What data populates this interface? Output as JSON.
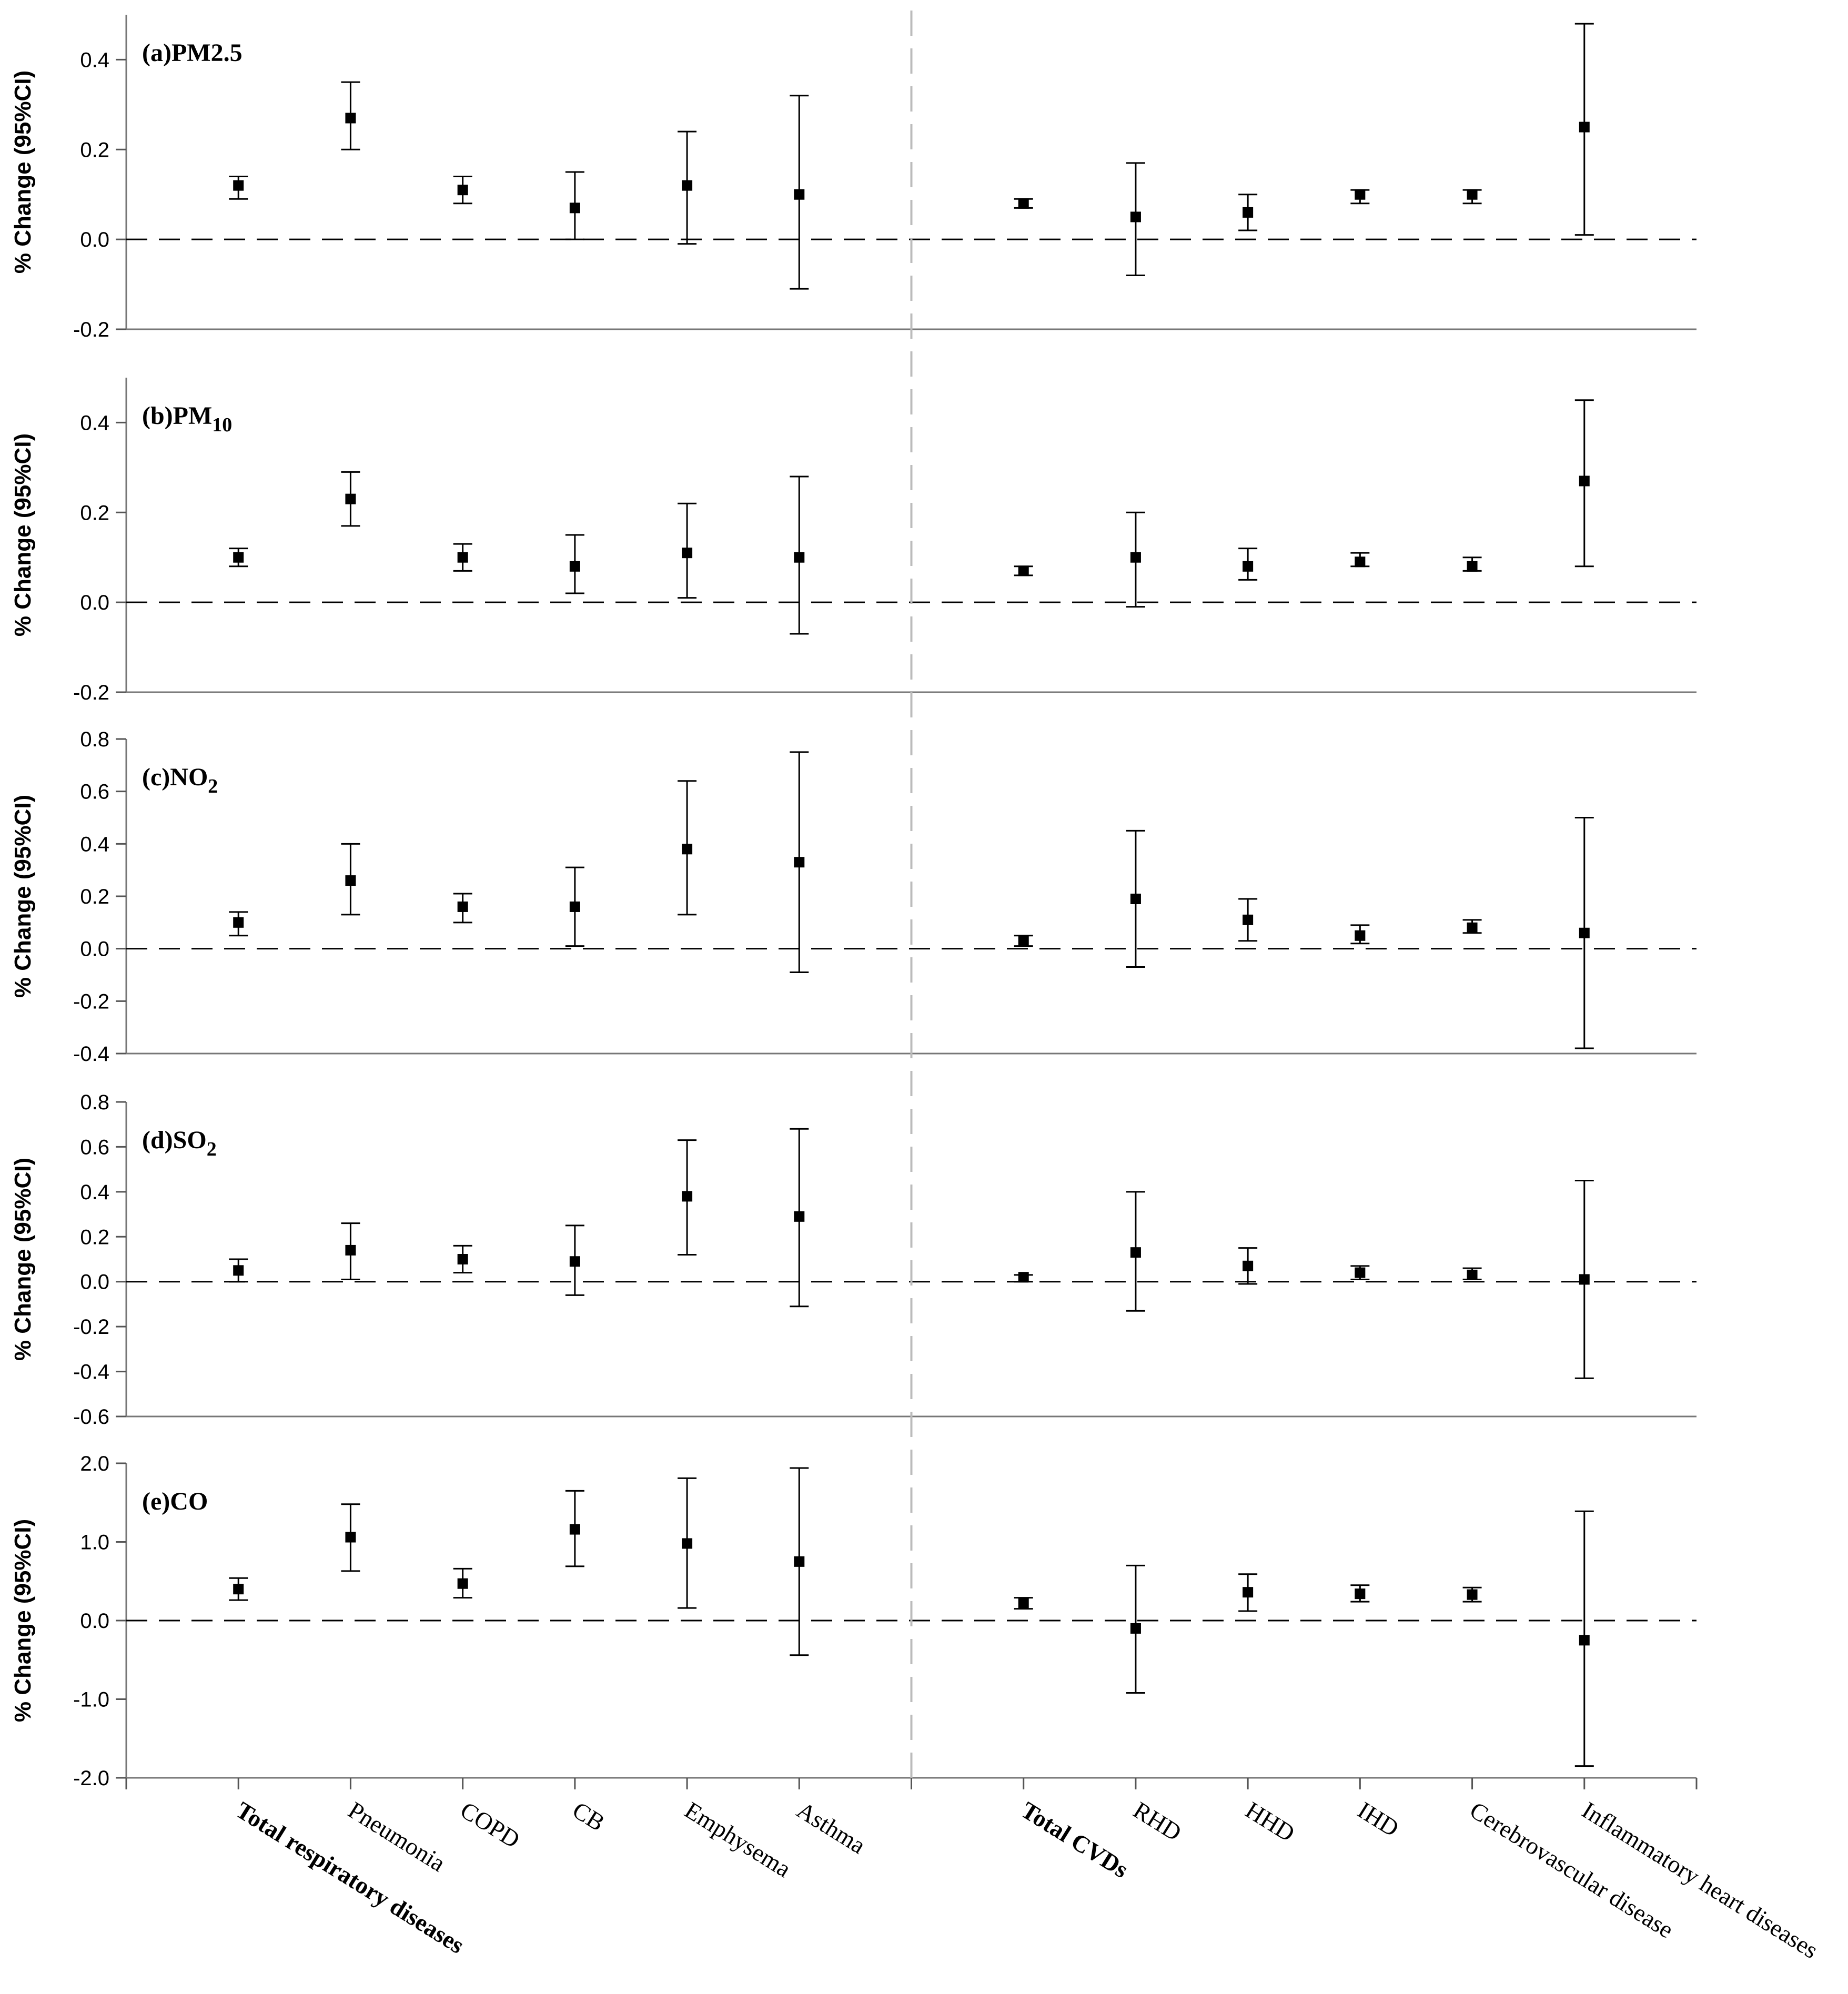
{
  "chart_data": {
    "type": "scatter",
    "subtype": "point-with-error-bars",
    "categories": [
      {
        "label": "Total respiratory diseases",
        "bold": true
      },
      {
        "label": "Pneumonia",
        "bold": false
      },
      {
        "label": "COPD",
        "bold": false
      },
      {
        "label": "CB",
        "bold": false
      },
      {
        "label": "Emphysema",
        "bold": false
      },
      {
        "label": "Asthma",
        "bold": false
      },
      {
        "label": "Total CVDs",
        "bold": true
      },
      {
        "label": "RHD",
        "bold": false
      },
      {
        "label": "HHD",
        "bold": false
      },
      {
        "label": "IHD",
        "bold": false
      },
      {
        "label": "Cerebrovascular disease",
        "bold": false
      },
      {
        "label": "Inflammatory heart diseases",
        "bold": false
      }
    ],
    "ylabel": "% Change (95%CI)",
    "reference_line": 0,
    "group_divider_after_index": 5,
    "panels": [
      {
        "title": {
          "main": "(a)PM",
          "sub": "",
          "tail": "2.5"
        },
        "ylim": [
          -0.2,
          0.5
        ],
        "yticks": [
          -0.2,
          0.0,
          0.2,
          0.4
        ],
        "tick_format": 1,
        "estimate": [
          0.12,
          0.27,
          0.11,
          0.07,
          0.12,
          0.1,
          0.08,
          0.05,
          0.06,
          0.1,
          0.1,
          0.25
        ],
        "lower": [
          0.09,
          0.2,
          0.08,
          0.0,
          -0.01,
          -0.11,
          0.07,
          -0.08,
          0.02,
          0.08,
          0.08,
          0.01
        ],
        "upper": [
          0.14,
          0.35,
          0.14,
          0.15,
          0.24,
          0.32,
          0.09,
          0.17,
          0.1,
          0.11,
          0.11,
          0.48
        ]
      },
      {
        "title": {
          "main": "(b)PM",
          "sub": "10",
          "tail": ""
        },
        "ylim": [
          -0.2,
          0.5
        ],
        "yticks": [
          -0.2,
          0.0,
          0.2,
          0.4
        ],
        "tick_format": 1,
        "estimate": [
          0.1,
          0.23,
          0.1,
          0.08,
          0.11,
          0.1,
          0.07,
          0.1,
          0.08,
          0.09,
          0.08,
          0.27
        ],
        "lower": [
          0.08,
          0.17,
          0.07,
          0.02,
          0.01,
          -0.07,
          0.06,
          -0.01,
          0.05,
          0.08,
          0.07,
          0.08
        ],
        "upper": [
          0.12,
          0.29,
          0.13,
          0.15,
          0.22,
          0.28,
          0.08,
          0.2,
          0.12,
          0.11,
          0.1,
          0.45
        ]
      },
      {
        "title": {
          "main": "(c)NO",
          "sub": "2",
          "tail": ""
        },
        "ylim": [
          -0.4,
          0.8
        ],
        "yticks": [
          -0.4,
          -0.2,
          0.0,
          0.2,
          0.4,
          0.6,
          0.8
        ],
        "tick_format": 1,
        "estimate": [
          0.1,
          0.26,
          0.16,
          0.16,
          0.38,
          0.33,
          0.03,
          0.19,
          0.11,
          0.05,
          0.08,
          0.06
        ],
        "lower": [
          0.05,
          0.13,
          0.1,
          0.01,
          0.13,
          -0.09,
          0.01,
          -0.07,
          0.03,
          0.02,
          0.06,
          -0.38
        ],
        "upper": [
          0.14,
          0.4,
          0.21,
          0.31,
          0.64,
          0.75,
          0.05,
          0.45,
          0.19,
          0.09,
          0.11,
          0.5
        ]
      },
      {
        "title": {
          "main": "(d)SO",
          "sub": "2",
          "tail": ""
        },
        "ylim": [
          -0.6,
          0.8
        ],
        "yticks": [
          -0.6,
          -0.4,
          -0.2,
          0.0,
          0.2,
          0.4,
          0.6,
          0.8
        ],
        "tick_format": 1,
        "estimate": [
          0.05,
          0.14,
          0.1,
          0.09,
          0.38,
          0.29,
          0.02,
          0.13,
          0.07,
          0.04,
          0.03,
          0.01
        ],
        "lower": [
          0.0,
          0.01,
          0.04,
          -0.06,
          0.12,
          -0.11,
          0.0,
          -0.13,
          -0.01,
          0.01,
          0.01,
          -0.43
        ],
        "upper": [
          0.1,
          0.26,
          0.16,
          0.25,
          0.63,
          0.68,
          0.03,
          0.4,
          0.15,
          0.07,
          0.06,
          0.45
        ]
      },
      {
        "title": {
          "main": "(e)CO",
          "sub": "",
          "tail": ""
        },
        "ylim": [
          -2.0,
          2.0
        ],
        "yticks": [
          -2.0,
          -1.0,
          0.0,
          1.0,
          2.0
        ],
        "tick_format": 1,
        "estimate": [
          0.4,
          1.06,
          0.47,
          1.16,
          0.98,
          0.75,
          0.22,
          -0.1,
          0.36,
          0.34,
          0.33,
          -0.25
        ],
        "lower": [
          0.26,
          0.63,
          0.29,
          0.69,
          0.16,
          -0.44,
          0.15,
          -0.92,
          0.12,
          0.24,
          0.24,
          -1.85
        ],
        "upper": [
          0.54,
          1.48,
          0.66,
          1.65,
          1.81,
          1.94,
          0.29,
          0.7,
          0.59,
          0.45,
          0.42,
          1.39
        ]
      }
    ]
  }
}
